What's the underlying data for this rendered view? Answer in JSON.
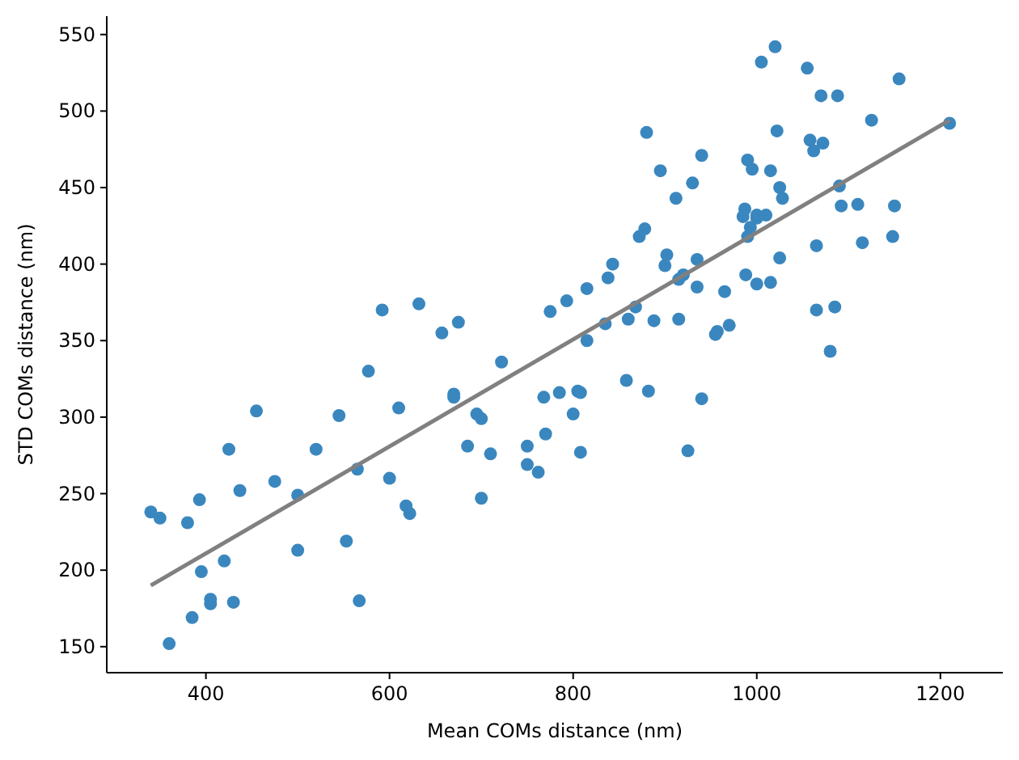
{
  "chart_data": {
    "type": "scatter",
    "xlabel": "Mean COMs distance (nm)",
    "ylabel": "STD COMs distance (nm)",
    "xlim": [
      292,
      1268
    ],
    "ylim": [
      133,
      562
    ],
    "xticks": [
      400,
      600,
      800,
      1000,
      1200
    ],
    "yticks": [
      150,
      200,
      250,
      300,
      350,
      400,
      450,
      500,
      550
    ],
    "grid": false,
    "marker": "circle",
    "series": [
      {
        "color": "#3a87bf",
        "x": [
          340,
          350,
          360,
          380,
          385,
          393,
          395,
          405,
          405,
          420,
          425,
          430,
          437,
          455,
          475,
          500,
          500,
          520,
          545,
          553,
          565,
          567,
          577,
          592,
          600,
          610,
          618,
          622,
          632,
          657,
          670,
          670,
          675,
          685,
          695,
          700,
          700,
          710,
          722,
          750,
          750,
          762,
          768,
          770,
          775,
          785,
          793,
          800,
          805,
          808,
          808,
          815,
          815,
          835,
          838,
          843,
          858,
          860,
          868,
          872,
          878,
          880,
          882,
          888,
          895,
          900,
          902,
          912,
          915,
          915,
          920,
          925,
          930,
          935,
          935,
          940,
          940,
          955,
          957,
          965,
          970,
          985,
          987,
          988,
          990,
          990,
          993,
          995,
          1000,
          1000,
          1000,
          1005,
          1010,
          1015,
          1015,
          1020,
          1022,
          1025,
          1025,
          1028,
          1055,
          1058,
          1062,
          1065,
          1065,
          1070,
          1072,
          1080,
          1085,
          1088,
          1090,
          1092,
          1110,
          1115,
          1125,
          1148,
          1150,
          1155,
          1210
        ],
        "values": [
          238,
          234,
          152,
          231,
          169,
          246,
          199,
          181,
          178,
          206,
          279,
          179,
          252,
          304,
          258,
          249,
          213,
          279,
          301,
          219,
          266,
          180,
          330,
          370,
          260,
          306,
          242,
          237,
          374,
          355,
          315,
          313,
          362,
          281,
          302,
          299,
          247,
          276,
          336,
          281,
          269,
          264,
          313,
          289,
          369,
          316,
          376,
          302,
          317,
          316,
          277,
          350,
          384,
          361,
          391,
          400,
          324,
          364,
          372,
          418,
          423,
          486,
          317,
          363,
          461,
          399,
          406,
          443,
          390,
          364,
          393,
          278,
          453,
          385,
          403,
          471,
          312,
          354,
          356,
          382,
          360,
          431,
          436,
          393,
          468,
          418,
          424,
          462,
          430,
          387,
          432,
          532,
          432,
          461,
          388,
          542,
          487,
          404,
          450,
          443,
          528,
          481,
          474,
          412,
          370,
          510,
          479,
          343,
          372,
          510,
          451,
          438,
          439,
          414,
          494,
          418,
          438,
          521,
          492
        ]
      },
      {
        "type": "line",
        "color": "#808080",
        "x": [
          340,
          1210
        ],
        "values": [
          190,
          494
        ],
        "marker": "none",
        "line_style": "solid"
      }
    ]
  }
}
